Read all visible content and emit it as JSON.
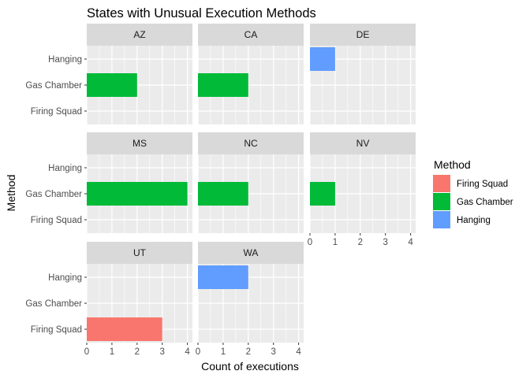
{
  "chart_data": {
    "type": "bar",
    "title": "States with Unusual Execution Methods",
    "xlabel": "Count of executions",
    "ylabel": "Method",
    "orientation": "horizontal",
    "faceted": true,
    "facet_layout": "3x3",
    "xlim": [
      0,
      4.2
    ],
    "x_ticks": [
      0,
      1,
      2,
      3,
      4
    ],
    "categories": [
      "Firing Squad",
      "Gas Chamber",
      "Hanging"
    ],
    "legend": {
      "title": "Method",
      "placement": "right",
      "entries": [
        {
          "name": "Firing Squad",
          "color": "#F8766D"
        },
        {
          "name": "Gas Chamber",
          "color": "#00BA38"
        },
        {
          "name": "Hanging",
          "color": "#619CFF"
        }
      ]
    },
    "panel_background": "#EBEBEB",
    "strip_background": "#D9D9D9",
    "grid": true,
    "facets": [
      {
        "state": "AZ",
        "values": {
          "Firing Squad": 0,
          "Gas Chamber": 2,
          "Hanging": 0
        }
      },
      {
        "state": "CA",
        "values": {
          "Firing Squad": 0,
          "Gas Chamber": 2,
          "Hanging": 0
        }
      },
      {
        "state": "DE",
        "values": {
          "Firing Squad": 0,
          "Gas Chamber": 0,
          "Hanging": 1
        }
      },
      {
        "state": "MS",
        "values": {
          "Firing Squad": 0,
          "Gas Chamber": 4,
          "Hanging": 0
        }
      },
      {
        "state": "NC",
        "values": {
          "Firing Squad": 0,
          "Gas Chamber": 2,
          "Hanging": 0
        }
      },
      {
        "state": "NV",
        "values": {
          "Firing Squad": 0,
          "Gas Chamber": 1,
          "Hanging": 0
        }
      },
      {
        "state": "UT",
        "values": {
          "Firing Squad": 3,
          "Gas Chamber": 0,
          "Hanging": 0
        }
      },
      {
        "state": "WA",
        "values": {
          "Firing Squad": 0,
          "Gas Chamber": 0,
          "Hanging": 2
        }
      }
    ]
  }
}
